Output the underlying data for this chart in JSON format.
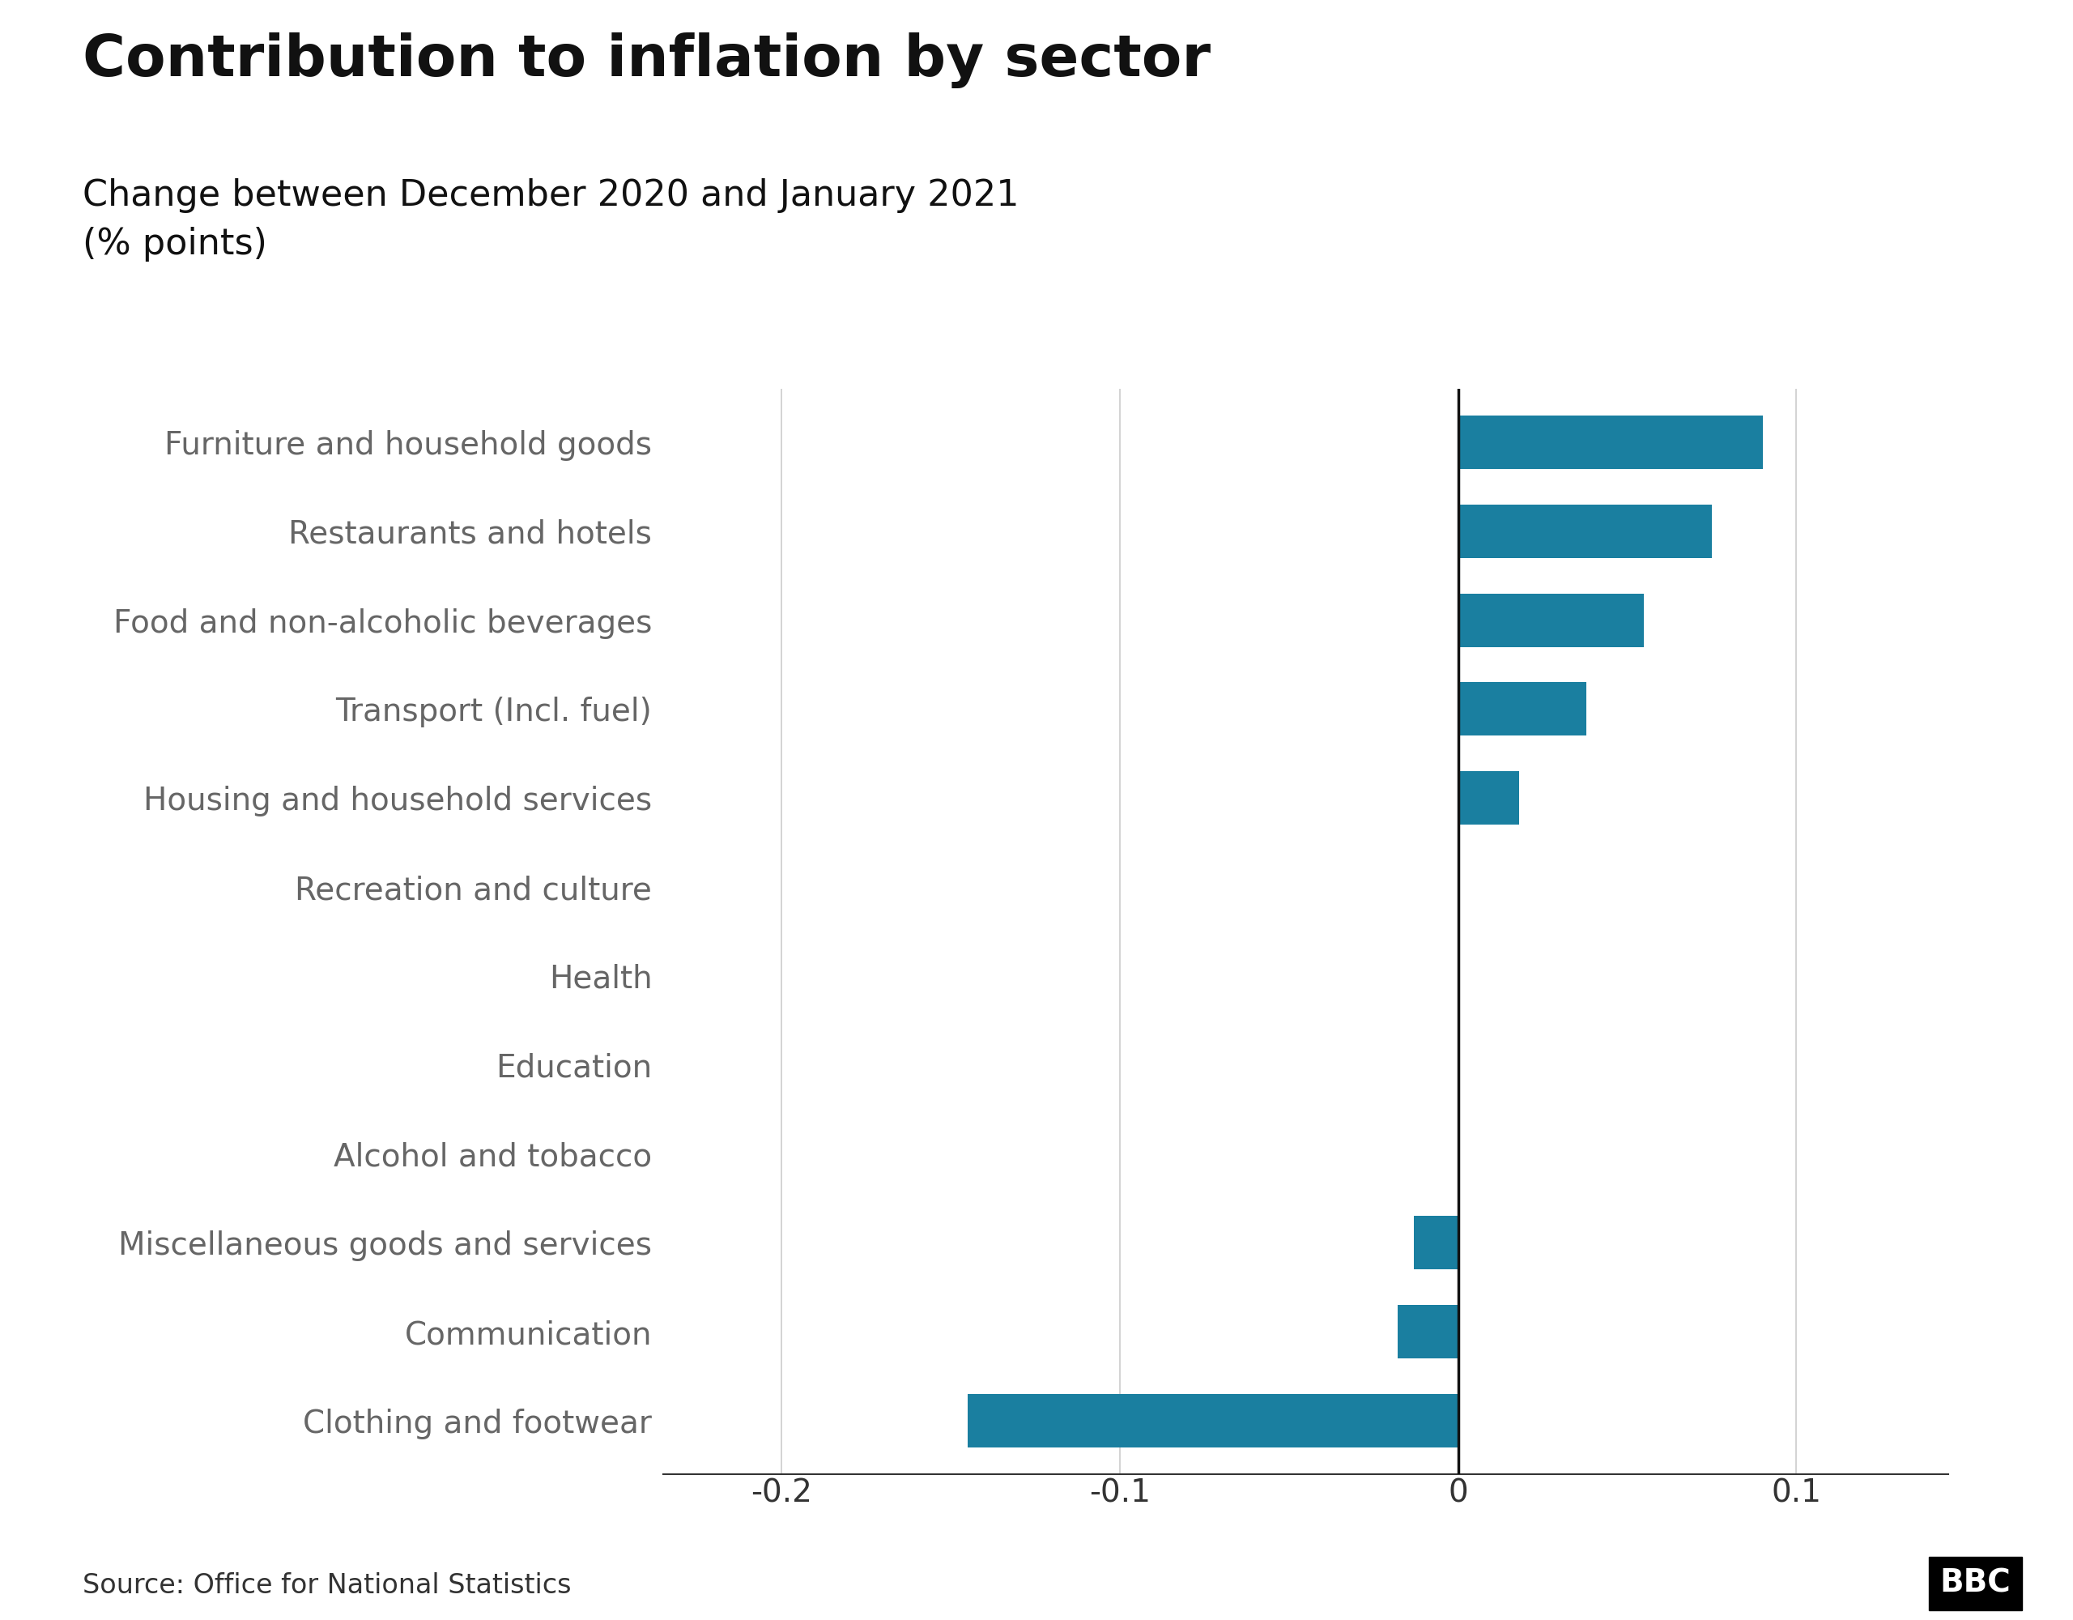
{
  "title": "Contribution to inflation by sector",
  "subtitle": "Change between December 2020 and January 2021\n(% points)",
  "categories": [
    "Furniture and household goods",
    "Restaurants and hotels",
    "Food and non-alcoholic beverages",
    "Transport (Incl. fuel)",
    "Housing and household services",
    "Recreation and culture",
    "Health",
    "Education",
    "Alcohol and tobacco",
    "Miscellaneous goods and services",
    "Communication",
    "Clothing and footwear"
  ],
  "values": [
    0.09,
    0.075,
    0.055,
    0.038,
    0.018,
    0.0,
    0.0,
    0.0,
    0.0,
    -0.013,
    -0.018,
    -0.145
  ],
  "bar_color": "#1a7fa0",
  "background_color": "#ffffff",
  "xlim": [
    -0.235,
    0.145
  ],
  "xticks": [
    -0.2,
    -0.1,
    0.0,
    0.1
  ],
  "xtick_labels": [
    "-0.2",
    "-0.1",
    "0",
    "0.1"
  ],
  "source_text": "Source: Office for National Statistics",
  "bbc_logo": "BBC",
  "title_fontsize": 52,
  "subtitle_fontsize": 32,
  "ytick_label_fontsize": 28,
  "xtick_label_fontsize": 28,
  "source_fontsize": 24
}
